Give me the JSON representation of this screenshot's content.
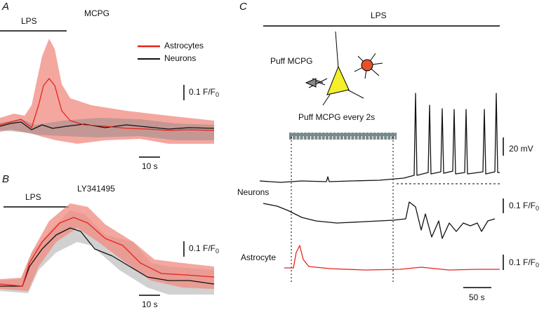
{
  "panel_a": {
    "letter": "A",
    "condition": "LPS",
    "drug": "MCPG",
    "legend": [
      "Astrocytes",
      "Neurons"
    ],
    "scale_y": {
      "text": "0.1 F/F",
      "subscript": "0"
    },
    "scale_x": "10 s"
  },
  "panel_b": {
    "letter": "B",
    "condition": "LPS",
    "drug": "LY341495",
    "scale_y": {
      "text": "0.1 F/F",
      "subscript": "0"
    },
    "scale_x": "10 s"
  },
  "panel_c": {
    "letter": "C",
    "condition": "LPS",
    "puff_label": "Puff MCPG",
    "protocol": "Puff MCPG every 2s",
    "scale_mv": "20 mV",
    "trace_neurons": "Neurons",
    "scale_neurons": {
      "text": "0.1 F/F",
      "subscript": "0"
    },
    "trace_astrocyte": "Astrocyte",
    "scale_astrocyte": {
      "text": "0.1 F/F",
      "subscript": "0"
    },
    "scale_x": "50 s"
  }
}
